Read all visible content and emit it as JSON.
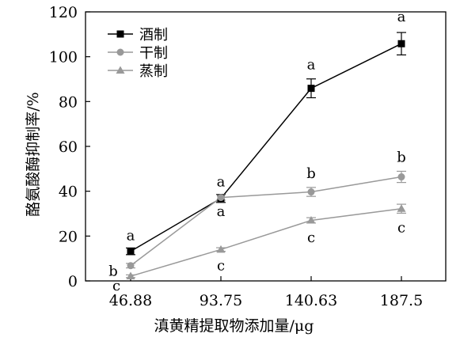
{
  "chart_data": {
    "type": "line",
    "xlabel": "滇黄精提取物添加量/μg",
    "ylabel": "酪氨酸酶抑制率/%",
    "categories": [
      "46.88",
      "93.75",
      "140.63",
      "187.5"
    ],
    "ylim": [
      0,
      120
    ],
    "yticks": [
      "0",
      "20",
      "40",
      "60",
      "80",
      "100",
      "120"
    ],
    "legend_position": "top-left",
    "grid": false,
    "series": [
      {
        "name": "酒制",
        "color": "#000000",
        "marker": "square",
        "values": [
          13.2,
          36.8,
          85.9,
          105.8
        ],
        "errors": [
          1.5,
          1.8,
          4.2,
          5.0
        ],
        "letters": [
          "a",
          "a",
          "a",
          "a"
        ]
      },
      {
        "name": "干制",
        "color": "#999999",
        "marker": "circle",
        "values": [
          6.8,
          37.2,
          39.7,
          46.4
        ],
        "errors": [
          1.0,
          1.2,
          2.0,
          2.5
        ],
        "letters": [
          "b",
          "a",
          "b",
          "b"
        ]
      },
      {
        "name": "蒸制",
        "color": "#999999",
        "marker": "triangle",
        "values": [
          2.1,
          14.0,
          27.0,
          32.2
        ],
        "errors": [
          0.6,
          0.8,
          1.2,
          2.0
        ],
        "letters": [
          "c",
          "c",
          "c",
          "c"
        ]
      }
    ]
  }
}
